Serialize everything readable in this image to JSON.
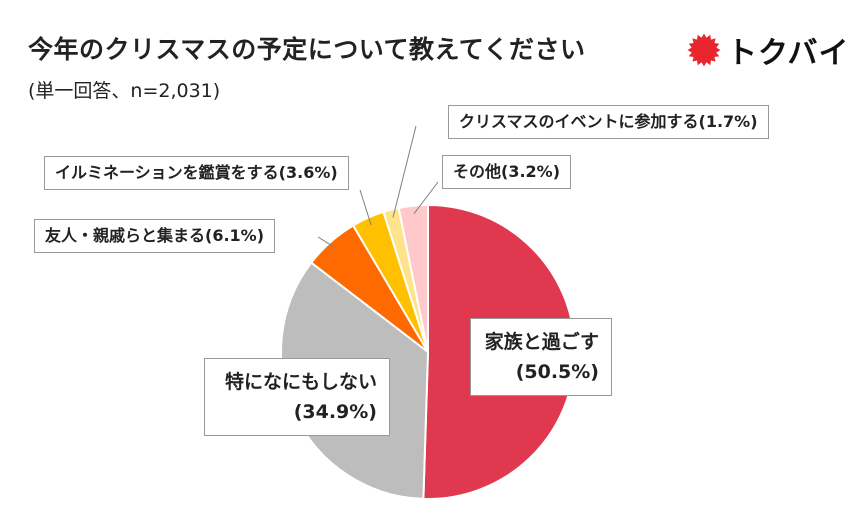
{
  "title": "今年のクリスマスの予定について教えてください",
  "subtitle": "(単一回答、n=2,031)",
  "logo": {
    "text": "トクバイ",
    "icon": "red-sunburst-icon",
    "color": "#e8262e"
  },
  "chart_data": {
    "type": "pie",
    "title": "今年のクリスマスの予定について教えてください",
    "subtitle": "(単一回答、n=2,031)",
    "slices": [
      {
        "label": "家族と過ごす",
        "value": 50.5,
        "color": "#e0394f",
        "display": "家族と過ごす",
        "pct": "(50.5%)"
      },
      {
        "label": "特になにもしない",
        "value": 34.9,
        "color": "#bdbdbd",
        "display": "特になにもしない",
        "pct": "(34.9%)"
      },
      {
        "label": "友人・親戚らと集まる",
        "value": 6.1,
        "color": "#ff6a00",
        "display": "友人・親戚らと集まる(6.1%)"
      },
      {
        "label": "イルミネーションを鑑賞をする",
        "value": 3.6,
        "color": "#ffc000",
        "display": "イルミネーションを鑑賞をする(3.6%)"
      },
      {
        "label": "クリスマスのイベントに参加する",
        "value": 1.7,
        "color": "#ffe38a",
        "display": "クリスマスのイベントに参加する(1.7%)"
      },
      {
        "label": "その他",
        "value": 3.2,
        "color": "#ffc9cc",
        "display": "その他(3.2%)"
      }
    ]
  }
}
